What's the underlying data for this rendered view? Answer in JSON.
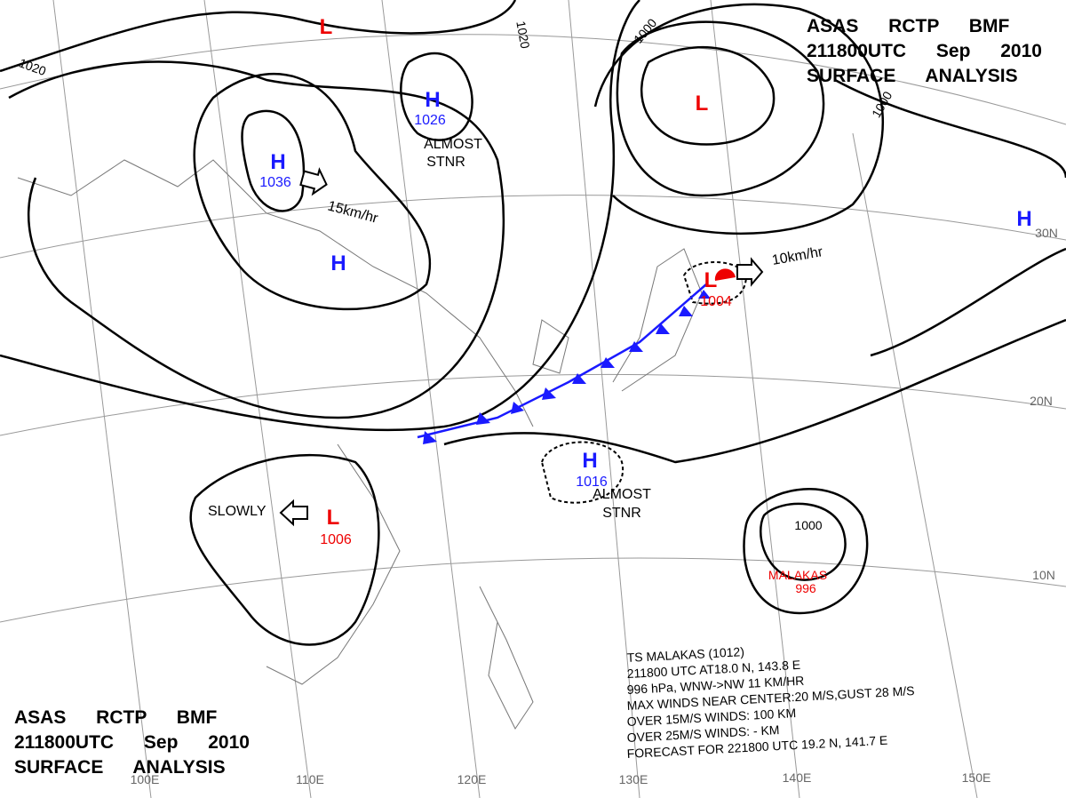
{
  "header_top": {
    "lines": [
      "ASAS RCTP BMF",
      "211800UTC Sep 2010",
      "SURFACE ANALYSIS"
    ]
  },
  "header_bottom": {
    "lines": [
      "ASAS RCTP BMF",
      "211800UTC Sep 2010",
      "SURFACE ANALYSIS"
    ]
  },
  "highs": [
    {
      "symbol": "H",
      "pressure": "1036"
    },
    {
      "symbol": "H",
      "pressure": "1026"
    },
    {
      "symbol": "H",
      "pressure": "1016"
    },
    {
      "symbol": "H"
    },
    {
      "symbol": "H"
    }
  ],
  "lows": [
    {
      "symbol": "L",
      "pressure": "1004"
    },
    {
      "symbol": "L",
      "pressure": "1006"
    },
    {
      "symbol": "L"
    },
    {
      "symbol": "L"
    }
  ],
  "typhoon": {
    "name": "MALAKAS",
    "pressure": "996"
  },
  "motions": [
    "15km/hr",
    "10km/hr",
    "SLOWLY"
  ],
  "stationary_notes": [
    [
      "ALMOST",
      "STNR"
    ],
    [
      "ALMOST",
      "STNR"
    ]
  ],
  "isobar_labels": [
    "1020",
    "1020",
    "1000",
    "1000",
    "1000"
  ],
  "latitudes": [
    "30N",
    "20N",
    "10N"
  ],
  "longitudes": [
    "100E",
    "110E",
    "120E",
    "130E",
    "140E",
    "150E"
  ],
  "info": {
    "lines": [
      "TS MALAKAS (1012)",
      "211800 UTC AT18.0 N, 143.8 E",
      "996 hPa, WNW->NW 11 KM/HR",
      "MAX WINDS NEAR CENTER:20 M/S,GUST 28 M/S",
      "OVER 15M/S WINDS: 100 KM",
      "OVER 25M/S WINDS: - KM",
      "FORECAST FOR 221800 UTC 19.2 N, 141.7 E"
    ]
  }
}
